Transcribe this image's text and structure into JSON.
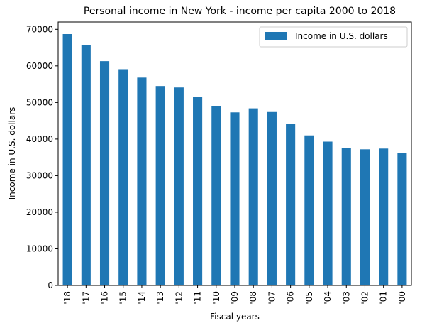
{
  "chart_data": {
    "type": "bar",
    "title": "Personal income in New York - income per capita 2000 to 2018",
    "xlabel": "Fiscal years",
    "ylabel": "Income in U.S. dollars",
    "categories": [
      "'18",
      "'17",
      "'16",
      "'15",
      "'14",
      "'13",
      "'12",
      "'11",
      "'10",
      "'09",
      "'08",
      "'07",
      "'06",
      "'05",
      "'04",
      "'03",
      "'02",
      "'01",
      "'00"
    ],
    "series": [
      {
        "name": "Income in U.S. dollars",
        "values": [
          68700,
          65600,
          61300,
          59100,
          56800,
          54500,
          54100,
          51500,
          49000,
          47300,
          48400,
          47400,
          44100,
          41000,
          39300,
          37600,
          37200,
          37400,
          36200
        ]
      }
    ],
    "ylim": [
      0,
      72000
    ],
    "yticks": [
      0,
      10000,
      20000,
      30000,
      40000,
      50000,
      60000,
      70000
    ],
    "legend_position": "top-right",
    "grid": false,
    "bar_color": "#1f77b4"
  }
}
